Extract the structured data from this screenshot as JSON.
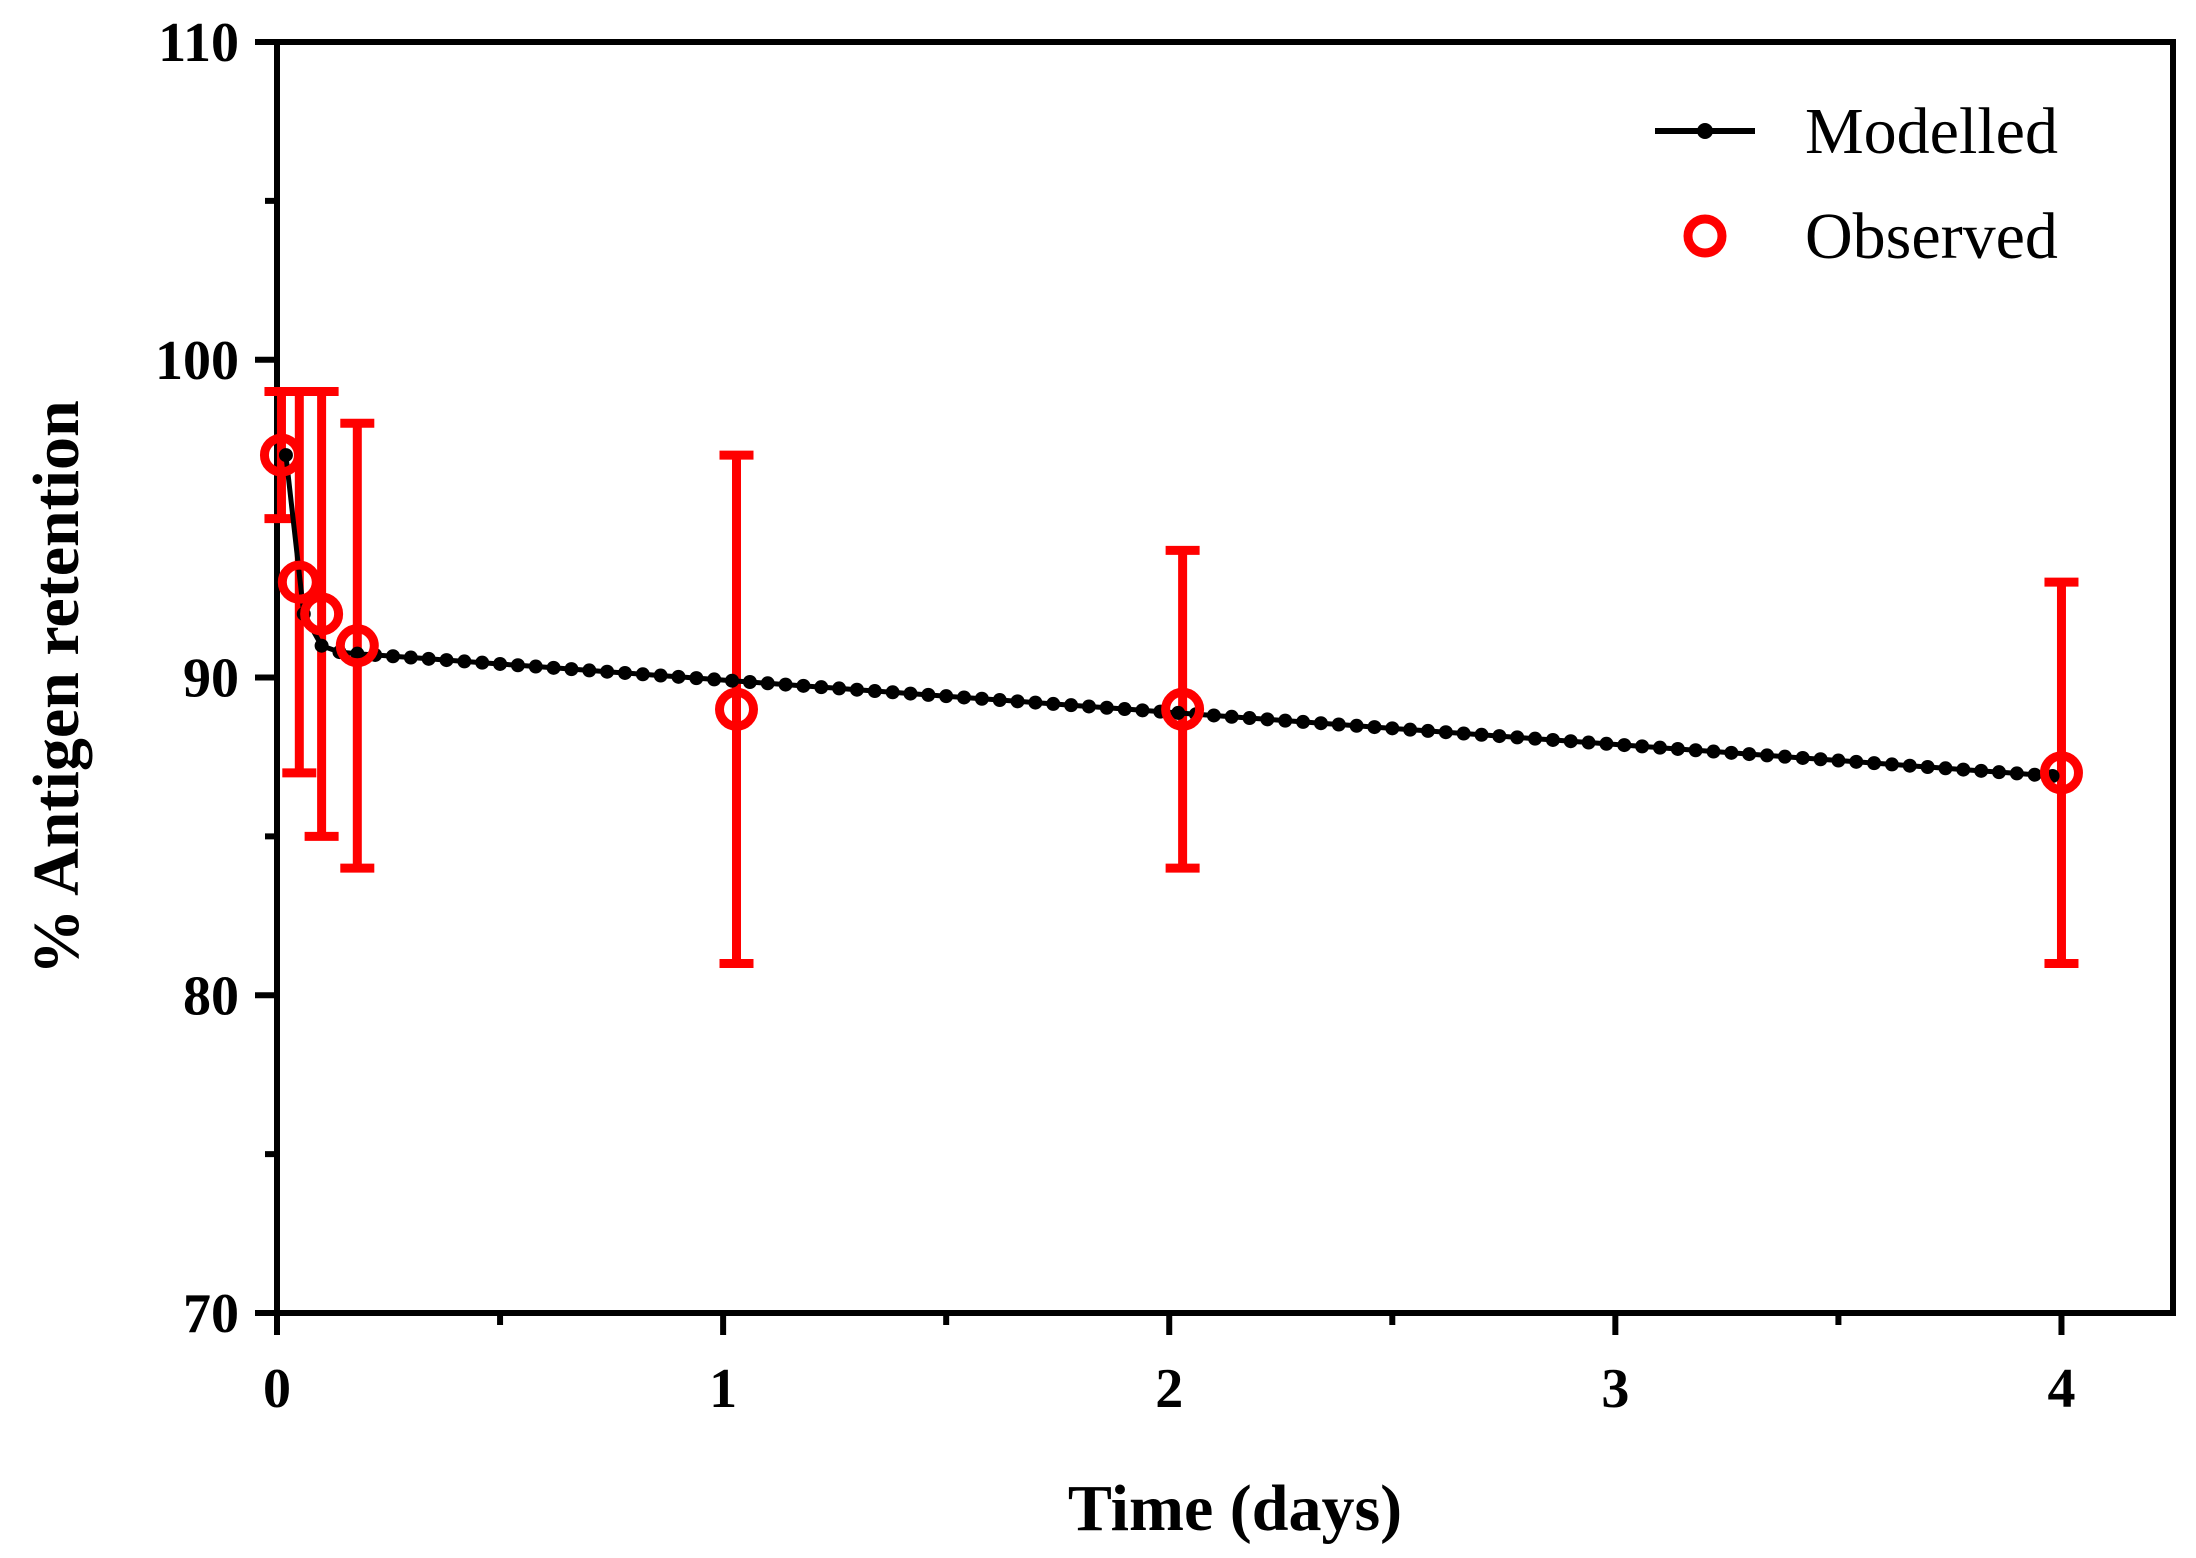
{
  "chart_data": {
    "type": "line",
    "title": "",
    "xlabel": "Time (days)",
    "ylabel": "% Antigen retention",
    "xlim": [
      0,
      4.25
    ],
    "ylim": [
      70,
      110
    ],
    "x_major_ticks": [
      0,
      1,
      2,
      3,
      4
    ],
    "x_tick_labels": [
      "0",
      "1",
      "2",
      "3",
      "4"
    ],
    "x_minor_ticks": [
      0.5,
      1.5,
      2.5,
      3.5
    ],
    "y_major_ticks": [
      70,
      80,
      90,
      100,
      110
    ],
    "y_tick_labels": [
      "70",
      "80",
      "90",
      "100",
      "110"
    ],
    "y_minor_ticks": [
      75,
      85,
      95,
      105
    ],
    "grid": false,
    "legend": {
      "position": "top-right",
      "entries": [
        "Modelled",
        "Observed"
      ]
    },
    "colors": {
      "modelled": "#000000",
      "observed": "#ff0000"
    },
    "series": [
      {
        "name": "Modelled",
        "style": "line-with-small-dots",
        "x": [
          0.02,
          0.06,
          0.1,
          0.14,
          0.18
        ],
        "y": [
          97.0,
          92.0,
          91.0,
          90.8,
          90.75
        ],
        "continuation": {
          "x_start": 0.18,
          "x_end": 3.98,
          "y_start": 90.75,
          "y_end": 86.9,
          "step": 0.04
        }
      },
      {
        "name": "Observed",
        "style": "open-circles-with-error-bars",
        "x": [
          0.01,
          0.05,
          0.1,
          0.18,
          1.03,
          2.03,
          4.0
        ],
        "y": [
          97,
          93,
          92,
          91,
          89,
          89,
          87
        ],
        "y_err_low": [
          95,
          87,
          85,
          84,
          81,
          84,
          81
        ],
        "y_err_high": [
          99,
          99,
          99,
          98,
          97,
          94,
          93
        ]
      }
    ]
  }
}
